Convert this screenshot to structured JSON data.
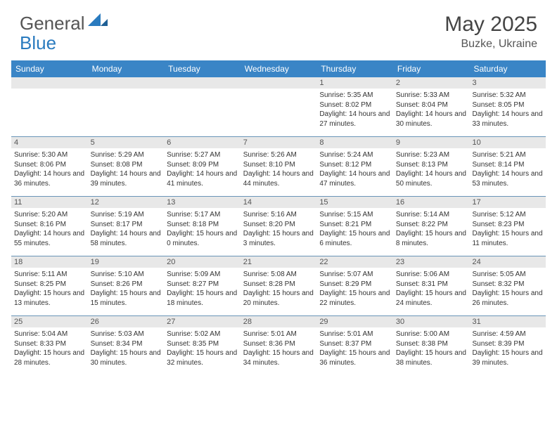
{
  "brand": {
    "part1": "General",
    "part2": "Blue"
  },
  "title": "May 2025",
  "subtitle": "Buzke, Ukraine",
  "colors": {
    "header_bg": "#3a85c6",
    "header_text": "#ffffff",
    "daynum_bg": "#e8e8e8",
    "week_border": "#6a95b8",
    "text": "#333333",
    "brand_blue": "#2a7bbf"
  },
  "weekdays": [
    "Sunday",
    "Monday",
    "Tuesday",
    "Wednesday",
    "Thursday",
    "Friday",
    "Saturday"
  ],
  "weeks": [
    [
      {
        "n": "",
        "sr": "",
        "ss": "",
        "dl": ""
      },
      {
        "n": "",
        "sr": "",
        "ss": "",
        "dl": ""
      },
      {
        "n": "",
        "sr": "",
        "ss": "",
        "dl": ""
      },
      {
        "n": "",
        "sr": "",
        "ss": "",
        "dl": ""
      },
      {
        "n": "1",
        "sr": "Sunrise: 5:35 AM",
        "ss": "Sunset: 8:02 PM",
        "dl": "Daylight: 14 hours and 27 minutes."
      },
      {
        "n": "2",
        "sr": "Sunrise: 5:33 AM",
        "ss": "Sunset: 8:04 PM",
        "dl": "Daylight: 14 hours and 30 minutes."
      },
      {
        "n": "3",
        "sr": "Sunrise: 5:32 AM",
        "ss": "Sunset: 8:05 PM",
        "dl": "Daylight: 14 hours and 33 minutes."
      }
    ],
    [
      {
        "n": "4",
        "sr": "Sunrise: 5:30 AM",
        "ss": "Sunset: 8:06 PM",
        "dl": "Daylight: 14 hours and 36 minutes."
      },
      {
        "n": "5",
        "sr": "Sunrise: 5:29 AM",
        "ss": "Sunset: 8:08 PM",
        "dl": "Daylight: 14 hours and 39 minutes."
      },
      {
        "n": "6",
        "sr": "Sunrise: 5:27 AM",
        "ss": "Sunset: 8:09 PM",
        "dl": "Daylight: 14 hours and 41 minutes."
      },
      {
        "n": "7",
        "sr": "Sunrise: 5:26 AM",
        "ss": "Sunset: 8:10 PM",
        "dl": "Daylight: 14 hours and 44 minutes."
      },
      {
        "n": "8",
        "sr": "Sunrise: 5:24 AM",
        "ss": "Sunset: 8:12 PM",
        "dl": "Daylight: 14 hours and 47 minutes."
      },
      {
        "n": "9",
        "sr": "Sunrise: 5:23 AM",
        "ss": "Sunset: 8:13 PM",
        "dl": "Daylight: 14 hours and 50 minutes."
      },
      {
        "n": "10",
        "sr": "Sunrise: 5:21 AM",
        "ss": "Sunset: 8:14 PM",
        "dl": "Daylight: 14 hours and 53 minutes."
      }
    ],
    [
      {
        "n": "11",
        "sr": "Sunrise: 5:20 AM",
        "ss": "Sunset: 8:16 PM",
        "dl": "Daylight: 14 hours and 55 minutes."
      },
      {
        "n": "12",
        "sr": "Sunrise: 5:19 AM",
        "ss": "Sunset: 8:17 PM",
        "dl": "Daylight: 14 hours and 58 minutes."
      },
      {
        "n": "13",
        "sr": "Sunrise: 5:17 AM",
        "ss": "Sunset: 8:18 PM",
        "dl": "Daylight: 15 hours and 0 minutes."
      },
      {
        "n": "14",
        "sr": "Sunrise: 5:16 AM",
        "ss": "Sunset: 8:20 PM",
        "dl": "Daylight: 15 hours and 3 minutes."
      },
      {
        "n": "15",
        "sr": "Sunrise: 5:15 AM",
        "ss": "Sunset: 8:21 PM",
        "dl": "Daylight: 15 hours and 6 minutes."
      },
      {
        "n": "16",
        "sr": "Sunrise: 5:14 AM",
        "ss": "Sunset: 8:22 PM",
        "dl": "Daylight: 15 hours and 8 minutes."
      },
      {
        "n": "17",
        "sr": "Sunrise: 5:12 AM",
        "ss": "Sunset: 8:23 PM",
        "dl": "Daylight: 15 hours and 11 minutes."
      }
    ],
    [
      {
        "n": "18",
        "sr": "Sunrise: 5:11 AM",
        "ss": "Sunset: 8:25 PM",
        "dl": "Daylight: 15 hours and 13 minutes."
      },
      {
        "n": "19",
        "sr": "Sunrise: 5:10 AM",
        "ss": "Sunset: 8:26 PM",
        "dl": "Daylight: 15 hours and 15 minutes."
      },
      {
        "n": "20",
        "sr": "Sunrise: 5:09 AM",
        "ss": "Sunset: 8:27 PM",
        "dl": "Daylight: 15 hours and 18 minutes."
      },
      {
        "n": "21",
        "sr": "Sunrise: 5:08 AM",
        "ss": "Sunset: 8:28 PM",
        "dl": "Daylight: 15 hours and 20 minutes."
      },
      {
        "n": "22",
        "sr": "Sunrise: 5:07 AM",
        "ss": "Sunset: 8:29 PM",
        "dl": "Daylight: 15 hours and 22 minutes."
      },
      {
        "n": "23",
        "sr": "Sunrise: 5:06 AM",
        "ss": "Sunset: 8:31 PM",
        "dl": "Daylight: 15 hours and 24 minutes."
      },
      {
        "n": "24",
        "sr": "Sunrise: 5:05 AM",
        "ss": "Sunset: 8:32 PM",
        "dl": "Daylight: 15 hours and 26 minutes."
      }
    ],
    [
      {
        "n": "25",
        "sr": "Sunrise: 5:04 AM",
        "ss": "Sunset: 8:33 PM",
        "dl": "Daylight: 15 hours and 28 minutes."
      },
      {
        "n": "26",
        "sr": "Sunrise: 5:03 AM",
        "ss": "Sunset: 8:34 PM",
        "dl": "Daylight: 15 hours and 30 minutes."
      },
      {
        "n": "27",
        "sr": "Sunrise: 5:02 AM",
        "ss": "Sunset: 8:35 PM",
        "dl": "Daylight: 15 hours and 32 minutes."
      },
      {
        "n": "28",
        "sr": "Sunrise: 5:01 AM",
        "ss": "Sunset: 8:36 PM",
        "dl": "Daylight: 15 hours and 34 minutes."
      },
      {
        "n": "29",
        "sr": "Sunrise: 5:01 AM",
        "ss": "Sunset: 8:37 PM",
        "dl": "Daylight: 15 hours and 36 minutes."
      },
      {
        "n": "30",
        "sr": "Sunrise: 5:00 AM",
        "ss": "Sunset: 8:38 PM",
        "dl": "Daylight: 15 hours and 38 minutes."
      },
      {
        "n": "31",
        "sr": "Sunrise: 4:59 AM",
        "ss": "Sunset: 8:39 PM",
        "dl": "Daylight: 15 hours and 39 minutes."
      }
    ]
  ]
}
